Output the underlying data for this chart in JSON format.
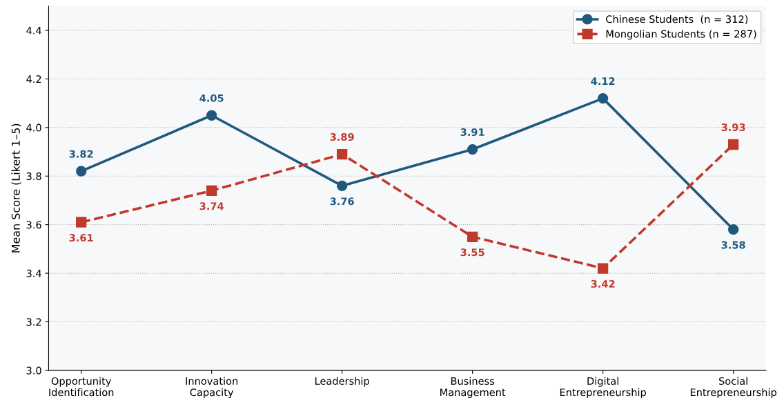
{
  "chart_data": {
    "type": "line",
    "ylabel": "Mean Score (Likert 1–5)",
    "categories": [
      "Opportunity\nIdentification",
      "Innovation\nCapacity",
      "Leadership",
      "Business\nManagement",
      "Digital\nEntrepreneurship",
      "Social\nEntrepreneurship"
    ],
    "series": [
      {
        "name": "Chinese Students  (n = 312)",
        "color": "#1f5a7d",
        "marker": "circle",
        "line_style": "solid",
        "values": [
          3.82,
          4.05,
          3.76,
          3.91,
          4.12,
          3.58
        ]
      },
      {
        "name": "Mongolian Students (n = 287)",
        "color": "#c0392b",
        "marker": "square",
        "line_style": "dashed",
        "values": [
          3.61,
          3.74,
          3.89,
          3.55,
          3.42,
          3.93
        ]
      }
    ],
    "ylim": [
      3.0,
      4.5
    ],
    "yticks": [
      {
        "value": 3.0,
        "label": "3.0"
      },
      {
        "value": 3.2,
        "label": "3.2"
      },
      {
        "value": 3.4,
        "label": "3.4"
      },
      {
        "value": 3.6,
        "label": "3.6"
      },
      {
        "value": 3.8,
        "label": "3.8"
      },
      {
        "value": 4.0,
        "label": "4.0"
      },
      {
        "value": 4.2,
        "label": "4.2"
      },
      {
        "value": 4.4,
        "label": "4.4"
      }
    ],
    "grid": "y",
    "legend": "top right",
    "data_labels": true
  }
}
